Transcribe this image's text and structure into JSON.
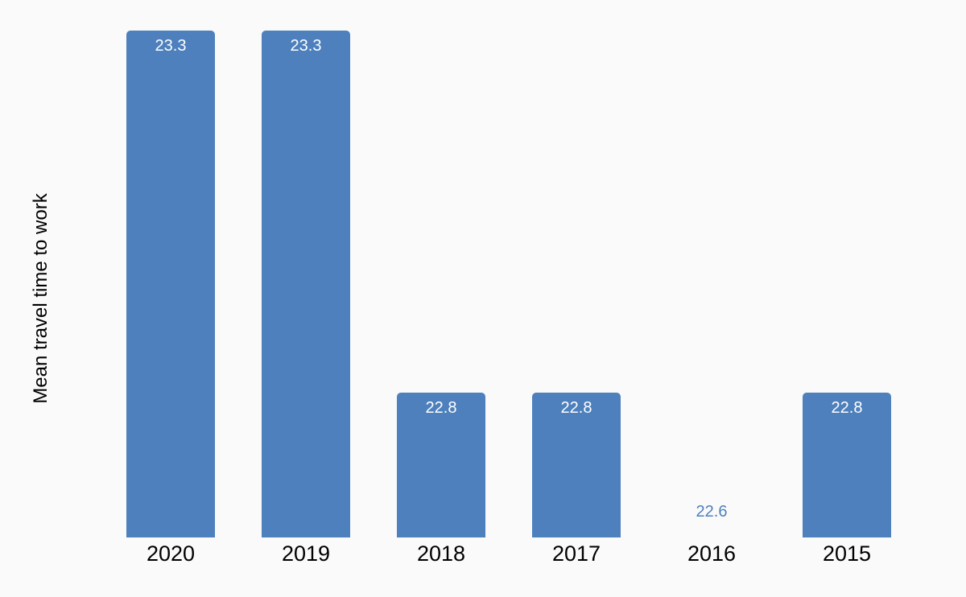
{
  "page": {
    "background_color": "#fafafa"
  },
  "chart_data": {
    "type": "bar",
    "title": "",
    "xlabel": "",
    "ylabel": "Mean travel time to work",
    "categories": [
      "2020",
      "2019",
      "2018",
      "2017",
      "2016",
      "2015"
    ],
    "values": [
      23.3,
      23.3,
      22.8,
      22.8,
      22.6,
      22.8
    ],
    "value_labels": [
      "23.3",
      "23.3",
      "22.8",
      "22.8",
      "22.6",
      "22.8"
    ],
    "ylim": [
      22.6,
      23.3
    ],
    "grid": false,
    "legend": false,
    "bar_color": "#4d80bc",
    "value_label_color_inside": "#ffffff",
    "value_label_color_outside": "#4d80bc",
    "tick_label_color": "#000000",
    "axis_title_color": "#000000"
  }
}
